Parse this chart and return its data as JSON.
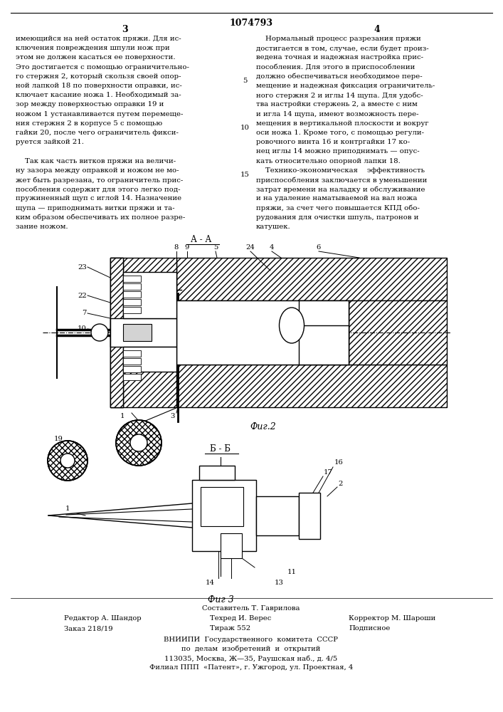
{
  "patent_number": "1074793",
  "page_numbers": [
    "3",
    "4"
  ],
  "left_text": [
    "имеющийся на ней остаток пряжи. Для ис-",
    "ключения повреждения шпули нож при",
    "этом не должен касаться ее поверхности.",
    "Это достигается с помощью ограничительно-",
    "го стержня 2, который скользя своей опор-",
    "ной лапкой 18 по поверхности оправки, ис-",
    "ключает касание ножа 1. Необходимый за-",
    "зор между поверхностью оправки 19 и",
    "ножом 1 устанавливается путем перемеще-",
    "ния стержня 2 в корпусе 5 с помощью",
    "гайки 20, после чего ограничитель фикси-",
    "руется зайкой 21.",
    "",
    "    Так как часть витков пряжи на величи-",
    "ну зазора между оправкой и ножом не мо-",
    "жет быть разрезана, то ограничитель прис-",
    "пособления содержит для этого легко под-",
    "пружиненный щуп с иглой 14. Назначение",
    "щупа — приподнимать витки пряжи и та-",
    "ким образом обеспечивать их полное разре-",
    "зание ножом."
  ],
  "right_text": [
    "    Нормальный процесс разрезания пряжи",
    "достигается в том, случае, если будет произ-",
    "ведена точная и надежная настройка прис-",
    "пособления. Для этого в приспособлении",
    "должно обеспечиваться необходимое пере-",
    "мещение и надежная фиксация ограничитель-",
    "ного стержня 2 и иглы 14 щупа. Для удобс-",
    "тва настройки стержень 2, а вместе с ним",
    "и игла 14 щупа, имеют возможность пере-",
    "мещения в вертикальной плоскости и вокруг",
    "оси ножа 1. Кроме того, с помощью регули-",
    "ровочного винта 16 и контргайки 17 ко-",
    "нец иглы 14 можно приподнимать — опус-",
    "кать относительно опорной лапки 18.",
    "    Технико-экономическая    эффективность",
    "приспособления заключается в уменьшении",
    "затрат времени на наладку и обслуживание",
    "и на удаление наматываемой на вал ножа",
    "пряжи, за счет чего повышается КПД обо-",
    "рудования для очистки шпуль, патронов и",
    "катушек."
  ],
  "line_number_5": "5",
  "line_number_10": "10",
  "line_number_15": "15",
  "fig2_label": "Фиг.2",
  "fig3_label": "Фиг 3",
  "section_aa": "А - А",
  "section_bb": "Б - Б",
  "footer_composer": "Составитель Т. Гаврилова",
  "footer_editor": "Редактор А. Шандор",
  "footer_tech": "Техред И. Верес",
  "footer_corrector": "Корректор М. Шароши",
  "footer_order": "Заказ 218/19",
  "footer_circulation": "Тираж 552",
  "footer_subscription": "Подписное",
  "footer_vniip1": "ВНИИПИ  Государственного  комитета  СССР",
  "footer_vniip2": "по  делам  изобретений  и  открытий",
  "footer_vniip3": "113035, Москва, Ж—35, Раушская наб., д. 4/5",
  "footer_vniip4": "Филиал ППП  «Патент», г. Ужгород, ул. Проектная, 4",
  "bg_color": "#ffffff",
  "text_color": "#000000",
  "line_color": "#000000"
}
